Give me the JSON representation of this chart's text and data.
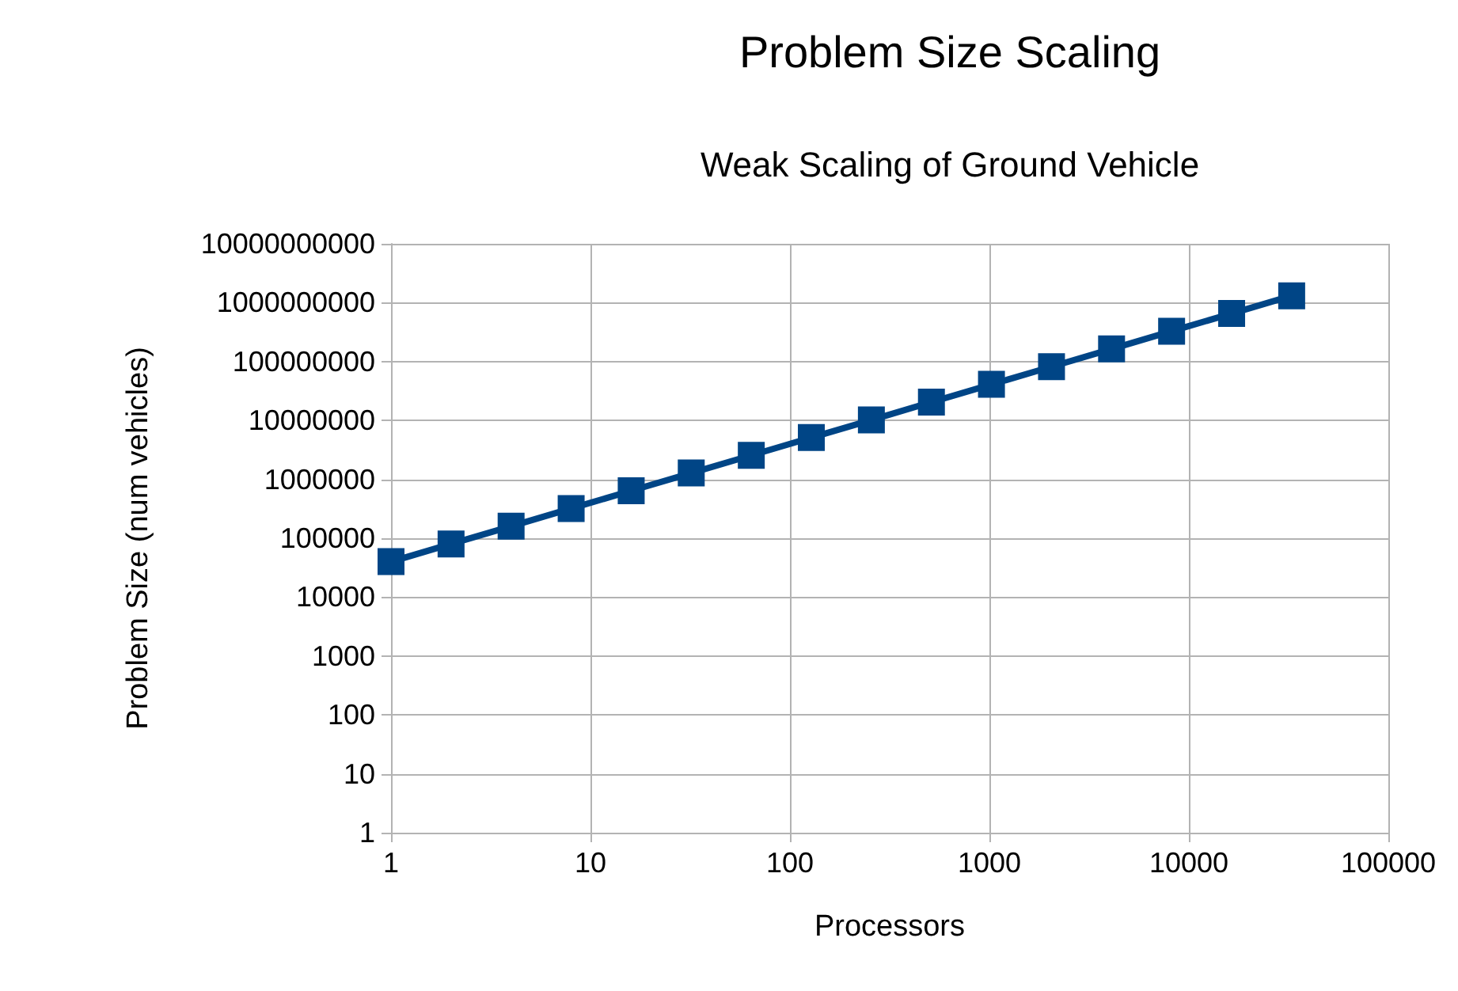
{
  "chart_data": {
    "type": "line",
    "title": "Problem Size Scaling",
    "subtitle": "Weak Scaling of Ground Vehicle",
    "xlabel": "Processors",
    "ylabel": "Problem Size (num vehicles)",
    "x": [
      1,
      2,
      4,
      8,
      16,
      32,
      64,
      128,
      256,
      512,
      1024,
      2048,
      4096,
      8192,
      16384,
      32768
    ],
    "series": [
      {
        "color": "#004586",
        "values": [
          40000,
          80000,
          160000,
          320000,
          640000,
          1280000,
          2560000,
          5120000,
          10200000,
          20500000,
          41000000,
          82000000,
          164000000,
          328000000,
          655000000,
          1310000000
        ]
      }
    ],
    "log": "xy",
    "xlim": [
      1,
      100000
    ],
    "xticks": [
      1,
      10,
      100,
      1000,
      10000,
      100000
    ],
    "ylim": [
      1,
      10000000000
    ],
    "yticks": [
      1,
      10,
      100,
      1000,
      10000,
      100000,
      1000000,
      10000000,
      100000000,
      1000000000,
      10000000000
    ],
    "grid": true,
    "marker": "square",
    "line_style": "solid"
  }
}
